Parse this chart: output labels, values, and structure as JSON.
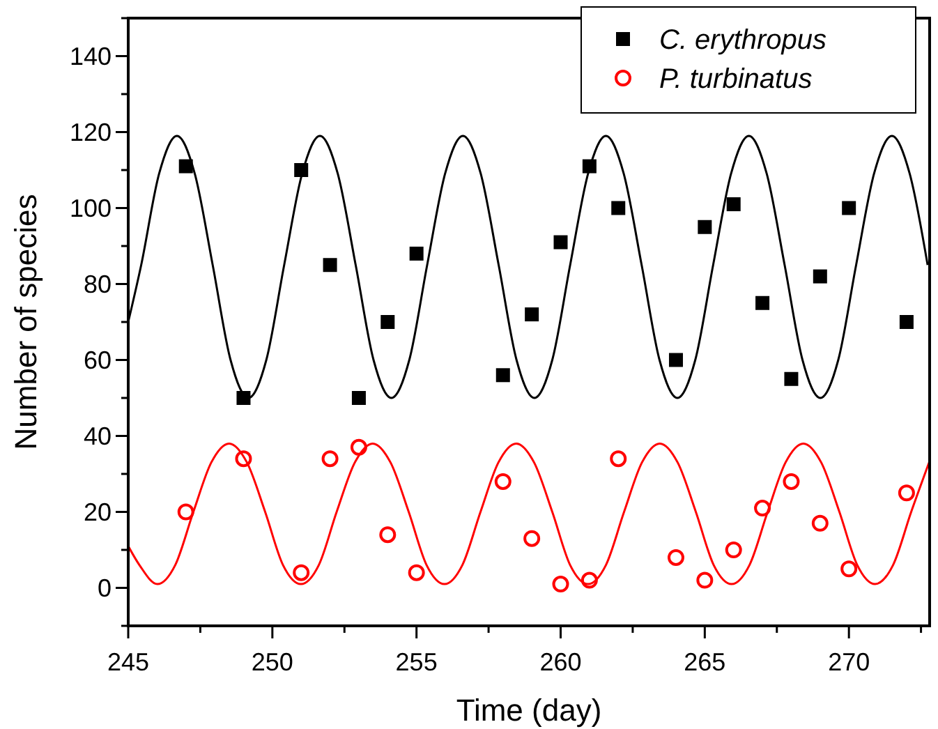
{
  "chart_data": {
    "type": "scatter",
    "xlabel": "Time (day)",
    "ylabel": "Number of species",
    "xlim": [
      245,
      272.8
    ],
    "ylim": [
      -10,
      150
    ],
    "xticks": [
      245,
      {
        "value": 247.5,
        "label": null
      },
      250,
      {
        "value": 252.5,
        "label": null
      },
      255,
      {
        "value": 257.5,
        "label": null
      },
      260,
      {
        "value": 262.5,
        "label": null
      },
      265,
      {
        "value": 267.5,
        "label": null
      },
      270,
      {
        "value": 272.5,
        "label": null
      }
    ],
    "yticks": [
      {
        "value": -10,
        "label": null
      },
      0,
      {
        "value": 10,
        "label": null
      },
      20,
      {
        "value": 30,
        "label": null
      },
      40,
      {
        "value": 50,
        "label": null
      },
      60,
      {
        "value": 70,
        "label": null
      },
      80,
      {
        "value": 90,
        "label": null
      },
      100,
      {
        "value": 110,
        "label": null
      },
      120,
      {
        "value": 130,
        "label": null
      },
      140,
      {
        "value": 150,
        "label": null
      }
    ],
    "legend": "top right",
    "grid": false,
    "series": [
      {
        "name": "C. erythropus",
        "marker": "square",
        "color": "#000000",
        "x": [
          247,
          249,
          251,
          252,
          253,
          254,
          255,
          258,
          259,
          260,
          261,
          262,
          264,
          265,
          266,
          267,
          268,
          269,
          270,
          272
        ],
        "values": [
          111,
          50,
          110,
          85,
          50,
          70,
          88,
          56,
          72,
          91,
          111,
          100,
          60,
          95,
          101,
          75,
          55,
          82,
          100,
          70
        ]
      },
      {
        "name": "P. turbinatus",
        "marker": "circle",
        "color": "#ff0000",
        "x": [
          247,
          249,
          251,
          252,
          253,
          254,
          255,
          258,
          259,
          260,
          261,
          262,
          264,
          265,
          266,
          267,
          268,
          269,
          270,
          272
        ],
        "values": [
          20,
          34,
          4,
          34,
          37,
          14,
          4,
          28,
          13,
          1,
          2,
          34,
          8,
          2,
          10,
          21,
          28,
          17,
          5,
          25
        ]
      },
      {
        "type": "line",
        "marker": "none",
        "color": "#000000",
        "x": [
          245,
          245.45,
          246.07,
          246.69,
          247.31,
          247.93,
          248.55,
          249.17,
          249.79,
          250.41,
          251.03,
          251.65,
          252.27,
          252.89,
          253.51,
          254.13,
          254.75,
          255.37,
          255.99,
          256.61,
          257.23,
          257.85,
          258.47,
          259.09,
          259.71,
          260.33,
          260.95,
          261.57,
          262.19,
          262.81,
          263.43,
          264.05,
          264.67,
          265.29,
          265.91,
          266.53,
          267.15,
          267.77,
          268.39,
          269.01,
          269.63,
          270.25,
          270.87,
          271.49,
          272.11,
          272.73
        ],
        "values": [
          70,
          85,
          109,
          119,
          109,
          85,
          60,
          50,
          60,
          85,
          109,
          119,
          109,
          85,
          60,
          50,
          60,
          85,
          109,
          119,
          109,
          85,
          60,
          50,
          60,
          85,
          109,
          119,
          109,
          85,
          60,
          50,
          60,
          85,
          109,
          119,
          109,
          85,
          60,
          50,
          60,
          85,
          109,
          119,
          109,
          85
        ]
      },
      {
        "type": "line",
        "marker": "none",
        "color": "#ff0000",
        "x": [
          245,
          245.39,
          246.01,
          246.63,
          247.26,
          247.88,
          248.5,
          249.12,
          249.75,
          250.37,
          250.99,
          251.61,
          252.23,
          252.86,
          253.48,
          254.1,
          254.73,
          255.35,
          255.97,
          256.59,
          257.22,
          257.84,
          258.46,
          259.08,
          259.71,
          260.33,
          260.95,
          261.57,
          262.2,
          262.82,
          263.44,
          264.06,
          264.69,
          265.31,
          265.93,
          266.55,
          267.18,
          267.8,
          268.42,
          269.04,
          269.67,
          270.29,
          270.91,
          271.53,
          272.16,
          272.78
        ],
        "values": [
          11,
          6,
          1,
          6,
          20,
          33,
          38,
          33,
          20,
          6,
          1,
          6,
          20,
          33,
          38,
          33,
          20,
          6,
          1,
          6,
          20,
          33,
          38,
          33,
          20,
          6,
          1,
          6,
          20,
          33,
          38,
          33,
          20,
          6,
          1,
          6,
          20,
          33,
          38,
          33,
          20,
          6,
          1,
          6,
          20,
          33
        ]
      }
    ]
  }
}
